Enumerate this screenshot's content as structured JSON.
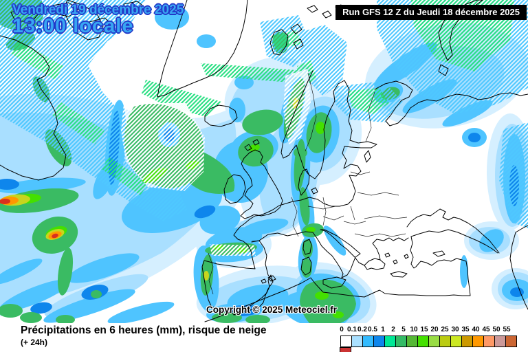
{
  "header": {
    "valid_date": "Vendredi 19 décembre 2025",
    "valid_time": "13:00 locale",
    "run_label": "Run GFS 12 Z du Jeudi 18 décembre 2025"
  },
  "map": {
    "copyright": "Copyright © 2025 Meteociel.fr"
  },
  "footer": {
    "title": "Précipitations en 6 heures (mm), risque de neige",
    "subtitle": "(+ 24h)",
    "legend": {
      "labels": [
        "0",
        "0.1",
        "0.2",
        "0.5",
        "1",
        "2",
        "5",
        "10",
        "15",
        "20",
        "25",
        "30",
        "35",
        "40",
        "45",
        "50",
        "55"
      ],
      "colors": [
        "#FFFFFF",
        "#AAE0FF",
        "#33BBFF",
        "#0E86EC",
        "#00E896",
        "#33BB66",
        "#55B835",
        "#44E000",
        "#99DD44",
        "#BBCC11",
        "#CCE822",
        "#CC9900",
        "#FF9800",
        "#FF9966",
        "#CC9999",
        "#CC6633",
        "#CC3333"
      ]
    }
  },
  "colors": {
    "date_text": "#38A6F2",
    "date_outline": "#2238C8",
    "run_bg": "#000000",
    "run_text": "#FFFFFF"
  }
}
